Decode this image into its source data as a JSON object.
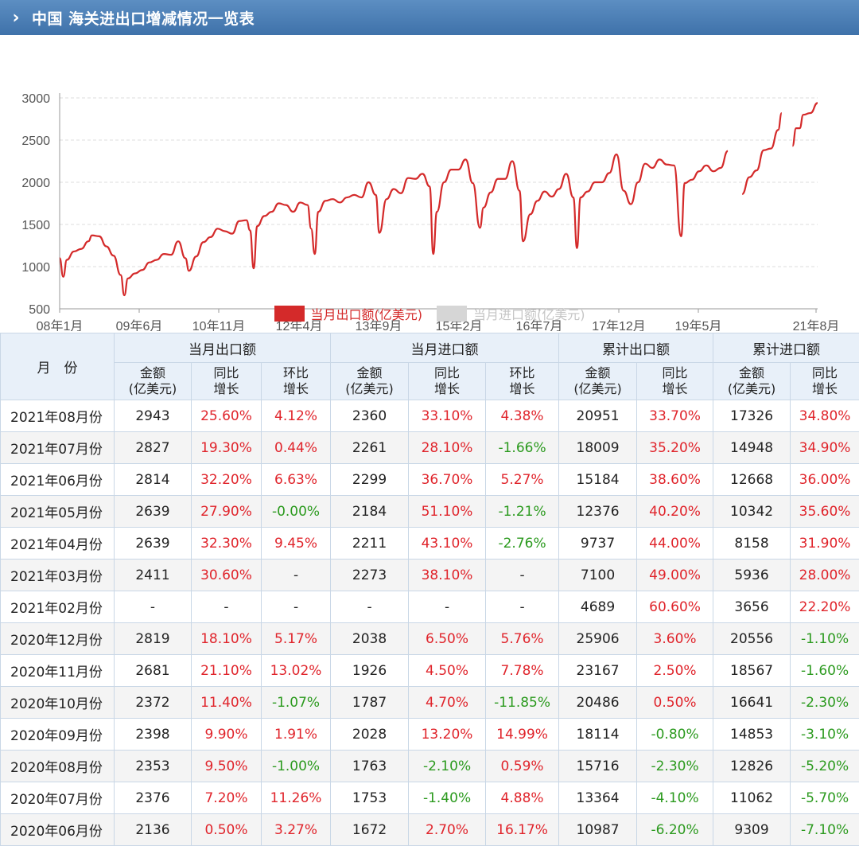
{
  "header": {
    "title": "中国 海关进出口增减情况一览表"
  },
  "chart_data": {
    "type": "line",
    "x_ticks": [
      "08年1月",
      "09年6月",
      "10年11月",
      "12年4月",
      "13年9月",
      "15年2月",
      "16年7月",
      "17年12月",
      "19年5月",
      "21年8月"
    ],
    "y_ticks": [
      "3000",
      "2500",
      "2000",
      "1500",
      "1000",
      "500"
    ],
    "ylim": [
      500,
      3000
    ],
    "series": [
      {
        "name": "当月出口额(亿美元)",
        "color": "#d42a2a",
        "visible": true,
        "points": [
          [
            0,
            1100
          ],
          [
            1,
            880
          ],
          [
            2,
            1080
          ],
          [
            4,
            1180
          ],
          [
            6,
            1210
          ],
          [
            8,
            1300
          ],
          [
            9,
            1370
          ],
          [
            11,
            1360
          ],
          [
            13,
            1240
          ],
          [
            15,
            1130
          ],
          [
            17,
            900
          ],
          [
            18,
            660
          ],
          [
            19,
            860
          ],
          [
            21,
            920
          ],
          [
            23,
            960
          ],
          [
            25,
            1050
          ],
          [
            27,
            1080
          ],
          [
            29,
            1150
          ],
          [
            31,
            1140
          ],
          [
            33,
            1300
          ],
          [
            35,
            1100
          ],
          [
            36,
            950
          ],
          [
            38,
            1120
          ],
          [
            40,
            1290
          ],
          [
            42,
            1350
          ],
          [
            44,
            1450
          ],
          [
            46,
            1420
          ],
          [
            48,
            1390
          ],
          [
            50,
            1540
          ],
          [
            52,
            1550
          ],
          [
            53,
            1430
          ],
          [
            54,
            980
          ],
          [
            55,
            1480
          ],
          [
            57,
            1600
          ],
          [
            59,
            1650
          ],
          [
            61,
            1750
          ],
          [
            63,
            1730
          ],
          [
            65,
            1650
          ],
          [
            67,
            1760
          ],
          [
            69,
            1730
          ],
          [
            70,
            1450
          ],
          [
            71,
            1150
          ],
          [
            72,
            1650
          ],
          [
            74,
            1780
          ],
          [
            76,
            1800
          ],
          [
            78,
            1760
          ],
          [
            80,
            1820
          ],
          [
            82,
            1850
          ],
          [
            84,
            1820
          ],
          [
            86,
            2000
          ],
          [
            88,
            1850
          ],
          [
            89,
            1400
          ],
          [
            91,
            1800
          ],
          [
            93,
            1920
          ],
          [
            95,
            1870
          ],
          [
            97,
            2050
          ],
          [
            99,
            2040
          ],
          [
            101,
            2100
          ],
          [
            103,
            1950
          ],
          [
            104,
            1150
          ],
          [
            105,
            1650
          ],
          [
            107,
            2000
          ],
          [
            109,
            2150
          ],
          [
            111,
            2150
          ],
          [
            113,
            2270
          ],
          [
            115,
            1990
          ],
          [
            117,
            1460
          ],
          [
            118,
            1700
          ],
          [
            120,
            1880
          ],
          [
            122,
            2040
          ],
          [
            124,
            2040
          ],
          [
            126,
            2250
          ],
          [
            128,
            1900
          ],
          [
            129,
            1300
          ],
          [
            131,
            1620
          ],
          [
            133,
            1780
          ],
          [
            135,
            1890
          ],
          [
            137,
            1830
          ],
          [
            139,
            1920
          ],
          [
            141,
            2100
          ],
          [
            143,
            1820
          ],
          [
            144,
            1220
          ],
          [
            145,
            1820
          ],
          [
            147,
            1890
          ],
          [
            149,
            2000
          ],
          [
            151,
            2000
          ],
          [
            153,
            2110
          ],
          [
            155,
            2330
          ],
          [
            157,
            1900
          ],
          [
            159,
            1740
          ],
          [
            161,
            2000
          ],
          [
            163,
            2220
          ],
          [
            165,
            2170
          ],
          [
            167,
            2270
          ],
          [
            169,
            2210
          ],
          [
            171,
            2200
          ],
          [
            173,
            1360
          ],
          [
            174,
            1990
          ],
          [
            176,
            2030
          ],
          [
            178,
            2130
          ],
          [
            180,
            2200
          ],
          [
            182,
            2130
          ],
          [
            184,
            2170
          ],
          [
            186,
            2370
          ],
          [
            190,
            1860
          ],
          [
            192,
            2060
          ],
          [
            194,
            2140
          ],
          [
            196,
            2380
          ],
          [
            198,
            2400
          ],
          [
            200,
            2620
          ],
          [
            201,
            2820
          ],
          [
            204,
            2430
          ],
          [
            205,
            2640
          ],
          [
            206,
            2640
          ],
          [
            207,
            2800
          ],
          [
            209,
            2820
          ],
          [
            211,
            2940
          ]
        ]
      },
      {
        "name": "当月进口额(亿美元)",
        "color": "#cccccc",
        "visible": false,
        "points": []
      }
    ]
  },
  "table": {
    "group_headers": [
      "当月出口额",
      "当月进口额",
      "累计出口额",
      "累计进口额"
    ],
    "month_header": "月　份",
    "sub_headers": [
      "金额\n(亿美元)",
      "同比\n增长",
      "环比\n增长",
      "金额\n(亿美元)",
      "同比\n增长",
      "环比\n增长",
      "金额\n(亿美元)",
      "同比\n增长",
      "金额\n(亿美元)",
      "同比\n增长"
    ],
    "rows": [
      [
        "2021年08月份",
        "2943",
        "25.60%",
        "4.12%",
        "2360",
        "33.10%",
        "4.38%",
        "20951",
        "33.70%",
        "17326",
        "34.80%"
      ],
      [
        "2021年07月份",
        "2827",
        "19.30%",
        "0.44%",
        "2261",
        "28.10%",
        "-1.66%",
        "18009",
        "35.20%",
        "14948",
        "34.90%"
      ],
      [
        "2021年06月份",
        "2814",
        "32.20%",
        "6.63%",
        "2299",
        "36.70%",
        "5.27%",
        "15184",
        "38.60%",
        "12668",
        "36.00%"
      ],
      [
        "2021年05月份",
        "2639",
        "27.90%",
        "-0.00%",
        "2184",
        "51.10%",
        "-1.21%",
        "12376",
        "40.20%",
        "10342",
        "35.60%"
      ],
      [
        "2021年04月份",
        "2639",
        "32.30%",
        "9.45%",
        "2211",
        "43.10%",
        "-2.76%",
        "9737",
        "44.00%",
        "8158",
        "31.90%"
      ],
      [
        "2021年03月份",
        "2411",
        "30.60%",
        "-",
        "2273",
        "38.10%",
        "-",
        "7100",
        "49.00%",
        "5936",
        "28.00%"
      ],
      [
        "2021年02月份",
        "-",
        "-",
        "-",
        "-",
        "-",
        "-",
        "4689",
        "60.60%",
        "3656",
        "22.20%"
      ],
      [
        "2020年12月份",
        "2819",
        "18.10%",
        "5.17%",
        "2038",
        "6.50%",
        "5.76%",
        "25906",
        "3.60%",
        "20556",
        "-1.10%"
      ],
      [
        "2020年11月份",
        "2681",
        "21.10%",
        "13.02%",
        "1926",
        "4.50%",
        "7.78%",
        "23167",
        "2.50%",
        "18567",
        "-1.60%"
      ],
      [
        "2020年10月份",
        "2372",
        "11.40%",
        "-1.07%",
        "1787",
        "4.70%",
        "-11.85%",
        "20486",
        "0.50%",
        "16641",
        "-2.30%"
      ],
      [
        "2020年09月份",
        "2398",
        "9.90%",
        "1.91%",
        "2028",
        "13.20%",
        "14.99%",
        "18114",
        "-0.80%",
        "14853",
        "-3.10%"
      ],
      [
        "2020年08月份",
        "2353",
        "9.50%",
        "-1.00%",
        "1763",
        "-2.10%",
        "0.59%",
        "15716",
        "-2.30%",
        "12826",
        "-5.20%"
      ],
      [
        "2020年07月份",
        "2376",
        "7.20%",
        "11.26%",
        "1753",
        "-1.40%",
        "4.88%",
        "13364",
        "-4.10%",
        "11062",
        "-5.70%"
      ],
      [
        "2020年06月份",
        "2136",
        "0.50%",
        "3.27%",
        "1672",
        "2.70%",
        "16.17%",
        "10987",
        "-6.20%",
        "9309",
        "-7.10%"
      ]
    ]
  },
  "colors": {
    "up": "#e0242b",
    "down": "#2b9a1e",
    "header_bg": "#4a7db5"
  }
}
